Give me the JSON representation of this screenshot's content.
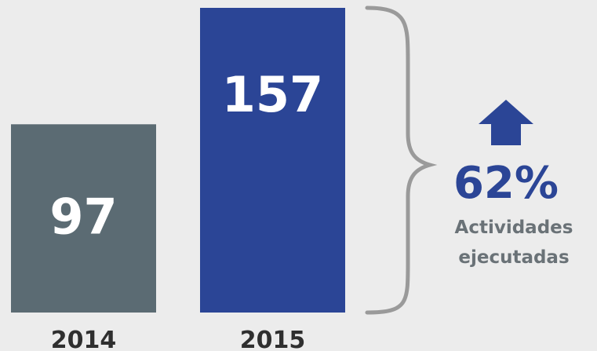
{
  "chart_data": {
    "type": "bar",
    "categories": [
      "2014",
      "2015"
    ],
    "values": [
      97,
      157
    ],
    "data_labels": [
      "97",
      "157"
    ],
    "colors": [
      "#5b6b73",
      "#2b4596"
    ],
    "ylim": [
      0,
      157
    ],
    "grid": false,
    "annotation": {
      "value_text": "62%",
      "caption_lines": [
        "Actividades",
        "ejecutadas"
      ],
      "icon": "up-arrow-icon",
      "brace": "right-curly-brace",
      "accent_color": "#2b4596",
      "brace_color": "#9a9a9a"
    }
  }
}
